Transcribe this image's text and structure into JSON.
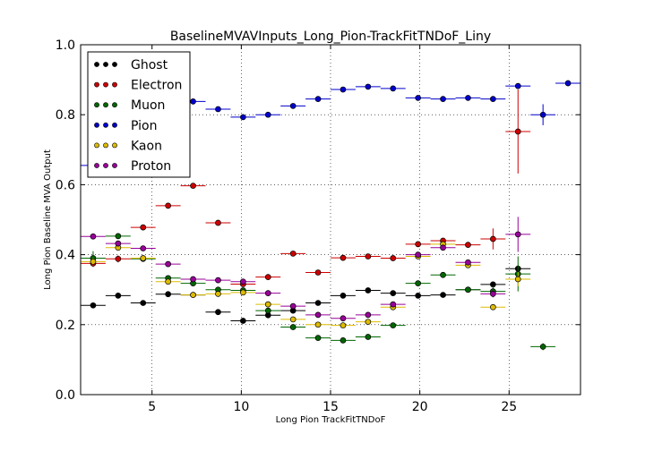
{
  "chart_data": {
    "type": "scatter",
    "title": "BaselineMVAVInputs_Long_Pion-TrackFitTNDoF_Liny",
    "xlabel": "Long Pion TrackFitTNDoF",
    "ylabel": "Long Pion Baseline MVA Output",
    "xlim": [
      1,
      29
    ],
    "ylim": [
      0.0,
      1.0
    ],
    "x_ticks": [
      5,
      10,
      15,
      20,
      25
    ],
    "y_ticks": [
      0.0,
      0.2,
      0.4,
      0.6,
      0.8,
      1.0
    ],
    "x_tick_labels": [
      "5",
      "10",
      "15",
      "20",
      "25"
    ],
    "y_tick_labels": [
      "0.0",
      "0.2",
      "0.4",
      "0.6",
      "0.8",
      "1.0"
    ],
    "grid": true,
    "legend_position": "top-left",
    "x_error_halfwidth": 0.7,
    "series": [
      {
        "name": "Ghost",
        "color": "#000000",
        "points": [
          {
            "x": 1.7,
            "y": 0.255,
            "yerr": 0.005
          },
          {
            "x": 3.1,
            "y": 0.283,
            "yerr": 0.005
          },
          {
            "x": 4.5,
            "y": 0.262,
            "yerr": 0.005
          },
          {
            "x": 5.9,
            "y": 0.287,
            "yerr": 0.005
          },
          {
            "x": 7.3,
            "y": 0.285,
            "yerr": 0.005
          },
          {
            "x": 8.7,
            "y": 0.236,
            "yerr": 0.005
          },
          {
            "x": 10.1,
            "y": 0.211,
            "yerr": 0.005
          },
          {
            "x": 11.5,
            "y": 0.227,
            "yerr": 0.005
          },
          {
            "x": 12.9,
            "y": 0.24,
            "yerr": 0.005
          },
          {
            "x": 14.3,
            "y": 0.262,
            "yerr": 0.005
          },
          {
            "x": 15.7,
            "y": 0.283,
            "yerr": 0.005
          },
          {
            "x": 17.1,
            "y": 0.298,
            "yerr": 0.005
          },
          {
            "x": 18.5,
            "y": 0.29,
            "yerr": 0.005
          },
          {
            "x": 19.9,
            "y": 0.283,
            "yerr": 0.005
          },
          {
            "x": 21.3,
            "y": 0.285,
            "yerr": 0.005
          },
          {
            "x": 22.7,
            "y": 0.3,
            "yerr": 0.006
          },
          {
            "x": 24.1,
            "y": 0.315,
            "yerr": 0.008
          },
          {
            "x": 25.5,
            "y": 0.36,
            "yerr": 0.01
          }
        ]
      },
      {
        "name": "Electron",
        "color": "#cc0000",
        "points": [
          {
            "x": 1.7,
            "y": 0.375,
            "yerr": 0.01
          },
          {
            "x": 3.1,
            "y": 0.388,
            "yerr": 0.01
          },
          {
            "x": 4.5,
            "y": 0.478,
            "yerr": 0.005
          },
          {
            "x": 5.9,
            "y": 0.54,
            "yerr": 0.005
          },
          {
            "x": 7.3,
            "y": 0.597,
            "yerr": 0.005
          },
          {
            "x": 8.7,
            "y": 0.491,
            "yerr": 0.005
          },
          {
            "x": 10.1,
            "y": 0.316,
            "yerr": 0.005
          },
          {
            "x": 11.5,
            "y": 0.336,
            "yerr": 0.005
          },
          {
            "x": 12.9,
            "y": 0.403,
            "yerr": 0.005
          },
          {
            "x": 14.3,
            "y": 0.349,
            "yerr": 0.005
          },
          {
            "x": 15.7,
            "y": 0.391,
            "yerr": 0.005
          },
          {
            "x": 17.1,
            "y": 0.395,
            "yerr": 0.005
          },
          {
            "x": 18.5,
            "y": 0.39,
            "yerr": 0.005
          },
          {
            "x": 19.9,
            "y": 0.43,
            "yerr": 0.006
          },
          {
            "x": 21.3,
            "y": 0.44,
            "yerr": 0.008
          },
          {
            "x": 22.7,
            "y": 0.428,
            "yerr": 0.006
          },
          {
            "x": 24.1,
            "y": 0.445,
            "yerr": 0.03
          },
          {
            "x": 25.5,
            "y": 0.752,
            "yerr": 0.12
          }
        ]
      },
      {
        "name": "Muon",
        "color": "#006600",
        "points": [
          {
            "x": 1.7,
            "y": 0.39,
            "yerr": 0.02
          },
          {
            "x": 3.1,
            "y": 0.453,
            "yerr": 0.008
          },
          {
            "x": 4.5,
            "y": 0.388,
            "yerr": 0.005
          },
          {
            "x": 5.9,
            "y": 0.333,
            "yerr": 0.005
          },
          {
            "x": 7.3,
            "y": 0.318,
            "yerr": 0.005
          },
          {
            "x": 8.7,
            "y": 0.3,
            "yerr": 0.005
          },
          {
            "x": 10.1,
            "y": 0.298,
            "yerr": 0.005
          },
          {
            "x": 11.5,
            "y": 0.24,
            "yerr": 0.005
          },
          {
            "x": 12.9,
            "y": 0.193,
            "yerr": 0.005
          },
          {
            "x": 14.3,
            "y": 0.162,
            "yerr": 0.005
          },
          {
            "x": 15.7,
            "y": 0.155,
            "yerr": 0.005
          },
          {
            "x": 17.1,
            "y": 0.165,
            "yerr": 0.005
          },
          {
            "x": 18.5,
            "y": 0.198,
            "yerr": 0.005
          },
          {
            "x": 19.9,
            "y": 0.318,
            "yerr": 0.006
          },
          {
            "x": 21.3,
            "y": 0.342,
            "yerr": 0.006
          },
          {
            "x": 22.7,
            "y": 0.3,
            "yerr": 0.008
          },
          {
            "x": 24.1,
            "y": 0.295,
            "yerr": 0.015
          },
          {
            "x": 25.5,
            "y": 0.345,
            "yerr": 0.05
          },
          {
            "x": 26.9,
            "y": 0.137,
            "yerr": 0.01
          }
        ]
      },
      {
        "name": "Pion",
        "color": "#0000cc",
        "points": [
          {
            "x": 1.7,
            "y": 0.655,
            "yerr": 0.004
          },
          {
            "x": 3.1,
            "y": 0.73,
            "yerr": 0.004
          },
          {
            "x": 4.5,
            "y": 0.8,
            "yerr": 0.004
          },
          {
            "x": 5.9,
            "y": 0.835,
            "yerr": 0.004
          },
          {
            "x": 7.3,
            "y": 0.838,
            "yerr": 0.004
          },
          {
            "x": 8.7,
            "y": 0.816,
            "yerr": 0.004
          },
          {
            "x": 10.1,
            "y": 0.793,
            "yerr": 0.004
          },
          {
            "x": 11.5,
            "y": 0.8,
            "yerr": 0.004
          },
          {
            "x": 12.9,
            "y": 0.825,
            "yerr": 0.004
          },
          {
            "x": 14.3,
            "y": 0.845,
            "yerr": 0.004
          },
          {
            "x": 15.7,
            "y": 0.872,
            "yerr": 0.004
          },
          {
            "x": 17.1,
            "y": 0.88,
            "yerr": 0.004
          },
          {
            "x": 18.5,
            "y": 0.875,
            "yerr": 0.004
          },
          {
            "x": 19.9,
            "y": 0.848,
            "yerr": 0.004
          },
          {
            "x": 21.3,
            "y": 0.845,
            "yerr": 0.004
          },
          {
            "x": 22.7,
            "y": 0.848,
            "yerr": 0.004
          },
          {
            "x": 24.1,
            "y": 0.845,
            "yerr": 0.005
          },
          {
            "x": 25.5,
            "y": 0.882,
            "yerr": 0.008
          },
          {
            "x": 26.9,
            "y": 0.8,
            "yerr": 0.03
          },
          {
            "x": 28.3,
            "y": 0.89,
            "yerr": 0.008
          }
        ]
      },
      {
        "name": "Kaon",
        "color": "#ddbb00",
        "points": [
          {
            "x": 1.7,
            "y": 0.38,
            "yerr": 0.01
          },
          {
            "x": 3.1,
            "y": 0.42,
            "yerr": 0.008
          },
          {
            "x": 4.5,
            "y": 0.39,
            "yerr": 0.005
          },
          {
            "x": 5.9,
            "y": 0.323,
            "yerr": 0.005
          },
          {
            "x": 7.3,
            "y": 0.285,
            "yerr": 0.005
          },
          {
            "x": 8.7,
            "y": 0.288,
            "yerr": 0.005
          },
          {
            "x": 10.1,
            "y": 0.292,
            "yerr": 0.005
          },
          {
            "x": 11.5,
            "y": 0.258,
            "yerr": 0.005
          },
          {
            "x": 12.9,
            "y": 0.215,
            "yerr": 0.005
          },
          {
            "x": 14.3,
            "y": 0.2,
            "yerr": 0.005
          },
          {
            "x": 15.7,
            "y": 0.198,
            "yerr": 0.005
          },
          {
            "x": 17.1,
            "y": 0.208,
            "yerr": 0.005
          },
          {
            "x": 18.5,
            "y": 0.25,
            "yerr": 0.005
          },
          {
            "x": 19.9,
            "y": 0.395,
            "yerr": 0.006
          },
          {
            "x": 21.3,
            "y": 0.43,
            "yerr": 0.006
          },
          {
            "x": 22.7,
            "y": 0.37,
            "yerr": 0.006
          },
          {
            "x": 24.1,
            "y": 0.25,
            "yerr": 0.006
          },
          {
            "x": 25.5,
            "y": 0.33,
            "yerr": 0.02
          }
        ]
      },
      {
        "name": "Proton",
        "color": "#990099",
        "points": [
          {
            "x": 1.7,
            "y": 0.452,
            "yerr": 0.005
          },
          {
            "x": 3.1,
            "y": 0.432,
            "yerr": 0.005
          },
          {
            "x": 4.5,
            "y": 0.418,
            "yerr": 0.005
          },
          {
            "x": 5.9,
            "y": 0.373,
            "yerr": 0.005
          },
          {
            "x": 7.3,
            "y": 0.33,
            "yerr": 0.005
          },
          {
            "x": 8.7,
            "y": 0.327,
            "yerr": 0.005
          },
          {
            "x": 10.1,
            "y": 0.323,
            "yerr": 0.005
          },
          {
            "x": 11.5,
            "y": 0.29,
            "yerr": 0.005
          },
          {
            "x": 12.9,
            "y": 0.253,
            "yerr": 0.005
          },
          {
            "x": 14.3,
            "y": 0.228,
            "yerr": 0.005
          },
          {
            "x": 15.7,
            "y": 0.218,
            "yerr": 0.005
          },
          {
            "x": 17.1,
            "y": 0.228,
            "yerr": 0.005
          },
          {
            "x": 18.5,
            "y": 0.258,
            "yerr": 0.005
          },
          {
            "x": 19.9,
            "y": 0.4,
            "yerr": 0.006
          },
          {
            "x": 21.3,
            "y": 0.42,
            "yerr": 0.006
          },
          {
            "x": 22.7,
            "y": 0.378,
            "yerr": 0.008
          },
          {
            "x": 24.1,
            "y": 0.288,
            "yerr": 0.01
          },
          {
            "x": 25.5,
            "y": 0.458,
            "yerr": 0.05
          }
        ]
      }
    ]
  }
}
